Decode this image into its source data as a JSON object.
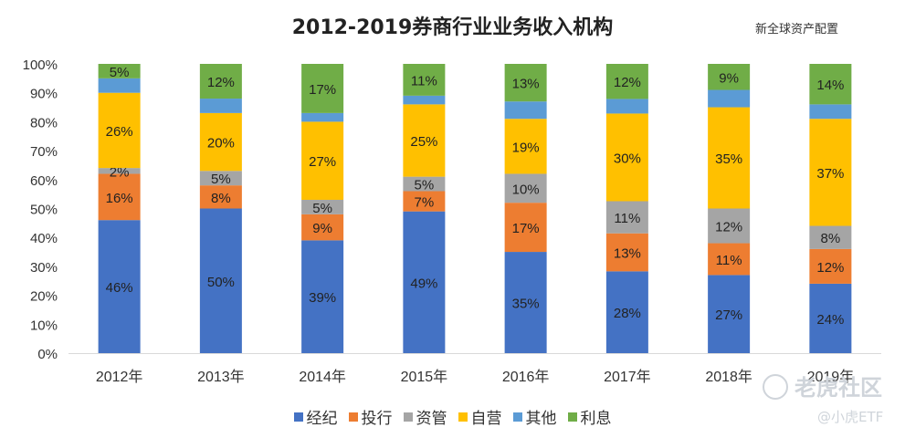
{
  "title": "2012-2019券商行业业务收入机构",
  "source": "新全球资产配置",
  "watermark": {
    "brand": "老虎社区",
    "account": "@小虎ETF"
  },
  "chart_data": {
    "type": "bar",
    "stacked": true,
    "percent_stacked": true,
    "categories": [
      "2012年",
      "2013年",
      "2014年",
      "2015年",
      "2016年",
      "2017年",
      "2018年",
      "2019年"
    ],
    "ylim": [
      0,
      100
    ],
    "yticks": [
      "0%",
      "10%",
      "20%",
      "30%",
      "40%",
      "50%",
      "60%",
      "70%",
      "80%",
      "90%",
      "100%"
    ],
    "legend_position": "bottom",
    "series": [
      {
        "name": "经纪",
        "color": "#4472C4",
        "label_color": "#222222",
        "values": [
          46,
          50,
          39,
          49,
          35,
          28,
          27,
          24
        ],
        "labels": [
          "46%",
          "50%",
          "39%",
          "49%",
          "35%",
          "28%",
          "27%",
          "24%"
        ]
      },
      {
        "name": "投行",
        "color": "#ED7D31",
        "label_color": "#222222",
        "values": [
          16,
          8,
          9,
          7,
          17,
          13,
          11,
          12
        ],
        "labels": [
          "16%",
          "8%",
          "9%",
          "7%",
          "17%",
          "13%",
          "11%",
          "12%"
        ]
      },
      {
        "name": "资管",
        "color": "#A5A5A5",
        "label_color": "#222222",
        "values": [
          2,
          5,
          5,
          5,
          10,
          11,
          12,
          8
        ],
        "labels": [
          "2%",
          "5%",
          "5%",
          "5%",
          "10%",
          "11%",
          "12%",
          "8%"
        ]
      },
      {
        "name": "自营",
        "color": "#FFC000",
        "label_color": "#222222",
        "values": [
          26,
          20,
          27,
          25,
          19,
          30,
          35,
          37
        ],
        "labels": [
          "26%",
          "20%",
          "27%",
          "25%",
          "19%",
          "30%",
          "35%",
          "37%"
        ]
      },
      {
        "name": "其他",
        "color": "#5B9BD5",
        "label_color": "#222222",
        "values": [
          5,
          5,
          3,
          3,
          6,
          5,
          6,
          5
        ],
        "labels": [
          "",
          "",
          "",
          "",
          "",
          "",
          "",
          ""
        ]
      },
      {
        "name": "利息",
        "color": "#70AD47",
        "label_color": "#222222",
        "values": [
          5,
          12,
          17,
          11,
          13,
          12,
          9,
          14
        ],
        "labels": [
          "5%",
          "12%",
          "17%",
          "11%",
          "13%",
          "12%",
          "9%",
          "14%"
        ]
      }
    ]
  }
}
